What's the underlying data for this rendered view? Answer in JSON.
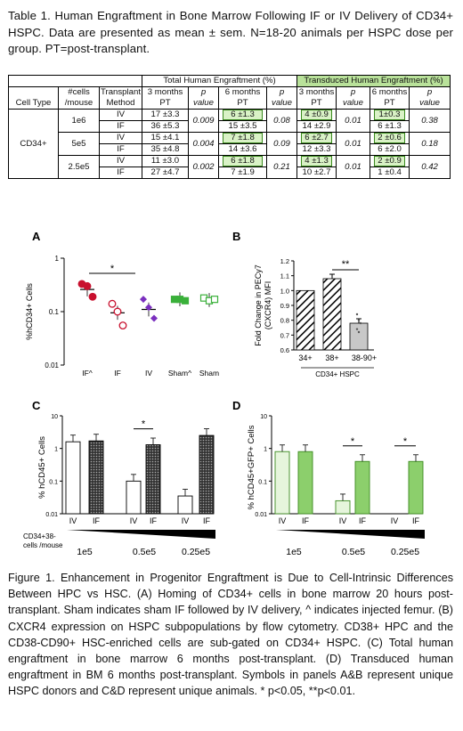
{
  "table_caption": "Table 1. Human Engraftment in Bone Marrow Following IF or IV Delivery of CD34+ HSPC. Data are presented as mean ± sem. N=18-20 animals per HSPC dose per group. PT=post-transplant.",
  "table": {
    "group_headers": {
      "total": "Total Human Engraftment (%)",
      "transduced": "Transduced Human Engraftment (%)"
    },
    "headers": {
      "cell_type": "Cell Type",
      "cells_mouse": [
        "#cells",
        "/mouse"
      ],
      "method": [
        "Transplant",
        "Method"
      ],
      "t3": [
        "3 months",
        "PT"
      ],
      "p": [
        "p",
        "value"
      ],
      "t6": [
        "6 months",
        "PT"
      ],
      "tr3": [
        "3 months",
        "PT"
      ],
      "tr6": [
        "6 months",
        "PT"
      ]
    },
    "cell_type_value": "CD34+",
    "doses": [
      {
        "dose": "1e6",
        "p3": "0.009",
        "p6": "0.08",
        "pt3": "0.01",
        "pt6": "0.38",
        "rows": [
          {
            "method": "IV",
            "t3": "17 ±3.3",
            "t6": "6 ±1.3",
            "tr3": "4 ±0.9",
            "tr6": "1±0.3"
          },
          {
            "method": "IF",
            "t3": "36 ±5.3",
            "t6": "15 ±3.5",
            "tr3": "14 ±2.9",
            "tr6": "6 ±1.3"
          }
        ]
      },
      {
        "dose": "5e5",
        "p3": "0.004",
        "p6": "0.09",
        "pt3": "0.01",
        "pt6": "0.18",
        "rows": [
          {
            "method": "IV",
            "t3": "15 ±4.1",
            "t6": "7 ±1.8",
            "tr3": "6 ±2.7",
            "tr6": "2 ±0.6"
          },
          {
            "method": "IF",
            "t3": "35 ±4.8",
            "t6": "14 ±3.6",
            "tr3": "12 ±3.3",
            "tr6": "6 ±2.0"
          }
        ]
      },
      {
        "dose": "2.5e5",
        "p3": "0.002",
        "p6": "0.21",
        "pt3": "0.01",
        "pt6": "0.42",
        "rows": [
          {
            "method": "IV",
            "t3": "11 ±3.0",
            "t6": "6 ±1.8",
            "tr3": "4 ±1.3",
            "tr6": "2 ±0.9"
          },
          {
            "method": "IF",
            "t3": "27 ±4.7",
            "t6": "7 ±1.9",
            "tr3": "10 ±2.7",
            "tr6": "1 ±0.4"
          }
        ]
      }
    ]
  },
  "panels": {
    "A": {
      "letter": "A",
      "ylabel": "%hCD34+ Cells",
      "yticks": [
        "1",
        "0.1",
        "0.01"
      ],
      "star": "*",
      "categories": [
        "IF^",
        "IF",
        "IV",
        "Sham^",
        "Sham"
      ]
    },
    "B": {
      "letter": "B",
      "ylabel": [
        "Fold Change in PECy7",
        "(CXCR4) MFI"
      ],
      "star": "**",
      "yticks": [
        "1.2",
        "1.1",
        "1.0",
        "0.9",
        "0.8",
        "0.7",
        "0.6"
      ],
      "categories": [
        "34+",
        "38+",
        "38-90+"
      ],
      "xlabel": "CD34+ HSPC"
    },
    "C": {
      "letter": "C",
      "ylabel": "% hCD45+ Cells",
      "yticks": [
        "10",
        "1",
        "0.1",
        "0.01"
      ],
      "star": "*",
      "categories": [
        "IV",
        "IF",
        "IV",
        "IF",
        "IV",
        "IF"
      ],
      "dose_label": [
        "CD34+38-",
        "cells /mouse"
      ],
      "doses": [
        "1e5",
        "0.5e5",
        "0.25e5"
      ]
    },
    "D": {
      "letter": "D",
      "ylabel": "% hCD45+GFP+ Cells",
      "yticks": [
        "10",
        "1",
        "0.1",
        "0.01"
      ],
      "stars": [
        "*",
        "*"
      ],
      "categories": [
        "IV",
        "IF",
        "IV",
        "IF",
        "IV",
        "IF"
      ],
      "doses": [
        "1e5",
        "0.5e5",
        "0.25e5"
      ]
    }
  },
  "chart_data": [
    {
      "type": "scatter",
      "panel": "A",
      "ylabel": "%hCD34+ Cells",
      "yscale": "log",
      "ylim": [
        0.01,
        1
      ],
      "categories": [
        "IF^",
        "IF",
        "IV",
        "Sham^",
        "Sham"
      ],
      "means": [
        0.26,
        0.095,
        0.11,
        0.17,
        0.165
      ],
      "points": [
        [
          0.33,
          0.3,
          0.19
        ],
        [
          0.14,
          0.1,
          0.055
        ],
        [
          0.17,
          0.12,
          0.075
        ],
        [
          0.17,
          0.17,
          0.16
        ],
        [
          0.18,
          0.16,
          0.17
        ]
      ]
    },
    {
      "type": "bar",
      "panel": "B",
      "ylabel": "Fold Change in PECy7 (CXCR4) MFI",
      "ylim": [
        0.6,
        1.2
      ],
      "categories": [
        "34+",
        "38+",
        "38-90+"
      ],
      "values": [
        1.0,
        1.08,
        0.78
      ],
      "xlabel": "CD34+ HSPC"
    },
    {
      "type": "bar",
      "panel": "C",
      "ylabel": "% hCD45+ Cells",
      "yscale": "log",
      "ylim": [
        0.01,
        10
      ],
      "categories": [
        "IV",
        "IF",
        "IV",
        "IF",
        "IV",
        "IF"
      ],
      "values": [
        1.6,
        1.7,
        0.1,
        1.3,
        0.035,
        2.5
      ]
    },
    {
      "type": "bar",
      "panel": "D",
      "ylabel": "% hCD45+GFP+ Cells",
      "yscale": "log",
      "ylim": [
        0.01,
        10
      ],
      "categories": [
        "IV",
        "IF",
        "IV",
        "IF",
        "IV",
        "IF"
      ],
      "values": [
        0.8,
        0.8,
        0.025,
        0.4,
        0.01,
        0.4
      ]
    }
  ],
  "figure_caption": "Figure 1. Enhancement in Progenitor Engraftment is Due to Cell-Intrinsic Differences Between HPC vs HSC. (A) Homing of CD34+ cells in bone marrow 20 hours post-transplant. Sham indicates sham IF followed by IV delivery, ^ indicates injected femur. (B) CXCR4 expression on HSPC subpopulations by flow cytometry. CD38+ HPC and the CD38-CD90+ HSC-enriched cells are sub-gated on CD34+ HSPC. (C) Total human engraftment in bone marrow 6 months post-transplant. (D) Transduced human engraftment in BM 6 months post-transplant. Symbols in panels A&B represent unique HSPC donors and C&D represent unique animals. * p<0.05, **p<0.01."
}
